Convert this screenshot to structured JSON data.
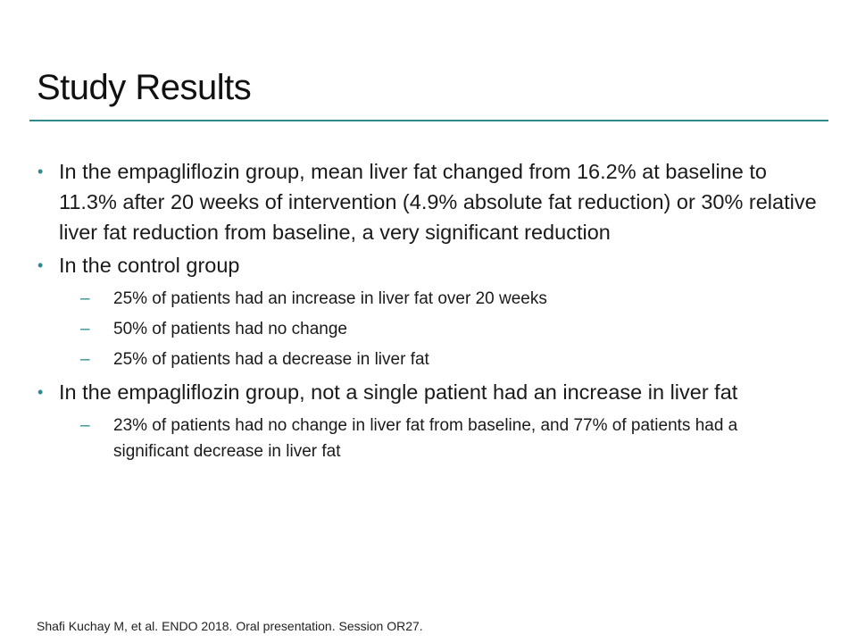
{
  "slide": {
    "title": "Study Results",
    "accent_color": "#2e8b8b",
    "bullet_icon": "round-bullet",
    "sub_bullet_icon": "dash"
  },
  "bullets": [
    {
      "text": "In the empagliflozin group, mean liver fat changed from 16.2% at baseline to 11.3% after 20 weeks of intervention (4.9% absolute fat reduction) or 30% relative liver fat reduction from baseline, a very significant reduction",
      "sub": []
    },
    {
      "text": "In the control group",
      "sub": [
        "25% of patients had an increase in liver fat over 20 weeks",
        "50% of patients had no change",
        "25% of patients had a decrease in liver fat"
      ]
    },
    {
      "text": "In the empagliflozin group, not a single patient had an increase in liver fat",
      "sub": [
        "23% of patients had no change in liver fat from baseline, and 77% of patients had a significant decrease in liver fat"
      ]
    }
  ],
  "markers": {
    "bullet": "•",
    "dash": "–"
  },
  "footnote": "Shafi Kuchay M, et al. ENDO 2018. Oral presentation. Session OR27."
}
